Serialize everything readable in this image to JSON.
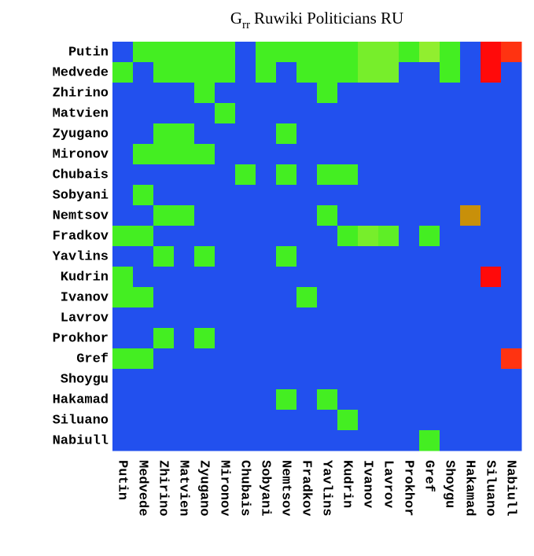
{
  "chart_data": {
    "type": "heatmap",
    "title": [
      "G",
      "rr",
      "Ruwiki Politicians RU"
    ],
    "categories": [
      "Putin",
      "Medvede",
      "Zhirino",
      "Matvien",
      "Zyugano",
      "Mironov",
      "Chubais",
      "Sobyani",
      "Nemtsov",
      "Fradkov",
      "Yavlins",
      "Kudrin",
      "Ivanov",
      "Lavrov",
      "Prokhor",
      "Gref",
      "Shoygu",
      "Hakamad",
      "Siluano",
      "Nabiull"
    ],
    "colorscale": [
      [
        0,
        "#2250ee"
      ],
      [
        0.3,
        "#44ee22"
      ],
      [
        0.5,
        "#aaee33"
      ],
      [
        0.8,
        "#c8900a"
      ],
      [
        0.95,
        "#ff3311"
      ],
      [
        1,
        "#ff0a0a"
      ]
    ],
    "values": [
      [
        0,
        0.3,
        0.3,
        0.3,
        0.3,
        0.3,
        0,
        0.3,
        0.3,
        0.3,
        0.3,
        0.3,
        0.4,
        0.4,
        0.3,
        0.45,
        0.3,
        0,
        1,
        0.95
      ],
      [
        0.3,
        0,
        0.3,
        0.3,
        0.3,
        0.3,
        0,
        0.3,
        0,
        0.3,
        0.3,
        0.3,
        0.4,
        0.4,
        0,
        0,
        0.3,
        0,
        1,
        0
      ],
      [
        0,
        0,
        0,
        0,
        0.3,
        0,
        0,
        0,
        0,
        0,
        0.3,
        0,
        0,
        0,
        0,
        0,
        0,
        0,
        0,
        0
      ],
      [
        0,
        0,
        0,
        0,
        0,
        0.3,
        0,
        0,
        0,
        0,
        0,
        0,
        0,
        0,
        0,
        0,
        0,
        0,
        0,
        0
      ],
      [
        0,
        0,
        0.3,
        0.3,
        0,
        0,
        0,
        0,
        0.3,
        0,
        0,
        0,
        0,
        0,
        0,
        0,
        0,
        0,
        0,
        0
      ],
      [
        0,
        0.3,
        0.3,
        0.3,
        0.3,
        0,
        0,
        0,
        0,
        0,
        0,
        0,
        0,
        0,
        0,
        0,
        0,
        0,
        0,
        0
      ],
      [
        0,
        0,
        0,
        0,
        0,
        0,
        0.3,
        0,
        0.3,
        0,
        0.3,
        0.3,
        0,
        0,
        0,
        0,
        0,
        0,
        0,
        0
      ],
      [
        0,
        0.3,
        0,
        0,
        0,
        0,
        0,
        0,
        0,
        0,
        0,
        0,
        0,
        0,
        0,
        0,
        0,
        0,
        0,
        0
      ],
      [
        0,
        0,
        0.3,
        0.3,
        0,
        0,
        0,
        0,
        0,
        0,
        0.3,
        0,
        0,
        0,
        0,
        0,
        0,
        0.8,
        0,
        0
      ],
      [
        0.3,
        0.3,
        0,
        0,
        0,
        0,
        0,
        0,
        0,
        0,
        0,
        0.3,
        0.4,
        0.35,
        0,
        0.3,
        0,
        0,
        0,
        0
      ],
      [
        0,
        0,
        0.3,
        0,
        0.3,
        0,
        0,
        0,
        0.3,
        0,
        0,
        0,
        0,
        0,
        0,
        0,
        0,
        0,
        0,
        0
      ],
      [
        0.3,
        0,
        0,
        0,
        0,
        0,
        0,
        0,
        0,
        0,
        0,
        0,
        0,
        0,
        0,
        0,
        0,
        0,
        1,
        0
      ],
      [
        0.3,
        0.3,
        0,
        0,
        0,
        0,
        0,
        0,
        0,
        0.3,
        0,
        0,
        0,
        0,
        0,
        0,
        0,
        0,
        0,
        0
      ],
      [
        0,
        0,
        0,
        0,
        0,
        0,
        0,
        0,
        0,
        0,
        0,
        0,
        0,
        0,
        0,
        0,
        0,
        0,
        0,
        0
      ],
      [
        0,
        0,
        0.3,
        0,
        0.3,
        0,
        0,
        0,
        0,
        0,
        0,
        0,
        0,
        0,
        0,
        0,
        0,
        0,
        0,
        0
      ],
      [
        0.3,
        0.3,
        0,
        0,
        0,
        0,
        0,
        0,
        0,
        0,
        0,
        0,
        0,
        0,
        0,
        0,
        0,
        0,
        0,
        0.95
      ],
      [
        0,
        0,
        0,
        0,
        0,
        0,
        0,
        0,
        0,
        0,
        0,
        0,
        0,
        0,
        0,
        0,
        0,
        0,
        0,
        0
      ],
      [
        0,
        0,
        0,
        0,
        0,
        0,
        0,
        0,
        0.3,
        0,
        0.3,
        0,
        0,
        0,
        0,
        0,
        0,
        0,
        0,
        0
      ],
      [
        0,
        0,
        0,
        0,
        0,
        0,
        0,
        0,
        0,
        0,
        0,
        0.3,
        0,
        0,
        0,
        0,
        0,
        0,
        0,
        0
      ],
      [
        0,
        0,
        0,
        0,
        0,
        0,
        0,
        0,
        0,
        0,
        0,
        0,
        0,
        0,
        0,
        0.3,
        0,
        0,
        0,
        0
      ]
    ]
  }
}
